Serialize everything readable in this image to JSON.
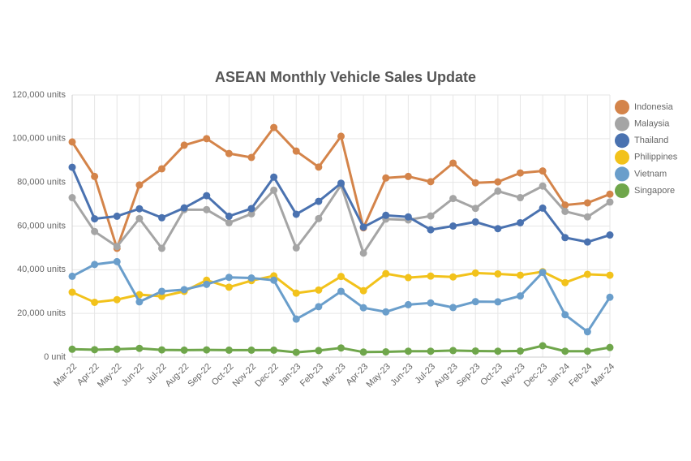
{
  "chart_data": {
    "type": "line",
    "title": "ASEAN Monthly Vehicle Sales Update",
    "categories": [
      "Mar-22",
      "Apr-22",
      "May-22",
      "Jun-22",
      "Jul-22",
      "Aug-22",
      "Sep-22",
      "Oct-22",
      "Nov-22",
      "Dec-22",
      "Jan-23",
      "Feb-23",
      "Mar-23",
      "Apr-23",
      "May-23",
      "Jun-23",
      "Jul-23",
      "Aug-23",
      "Sep-23",
      "Oct-23",
      "Nov-23",
      "Dec-23",
      "Jan-24",
      "Feb-24",
      "Mar-24"
    ],
    "series": [
      {
        "name": "Indonesia",
        "color": "#d4844a",
        "values": [
          98500,
          82700,
          49800,
          78800,
          86200,
          97000,
          100000,
          93200,
          91400,
          105100,
          94300,
          87000,
          101100,
          59200,
          82000,
          82700,
          80300,
          88800,
          79800,
          80200,
          84300,
          85200,
          69600,
          70600,
          74600
        ]
      },
      {
        "name": "Malaysia",
        "color": "#a5a5a5",
        "values": [
          73000,
          57500,
          50600,
          63400,
          49800,
          67500,
          67500,
          61500,
          65600,
          76400,
          50000,
          63400,
          78800,
          47600,
          63200,
          62800,
          64600,
          72600,
          68100,
          76000,
          73000,
          78300,
          66700,
          64200,
          71000
        ]
      },
      {
        "name": "Thailand",
        "color": "#4a72b0",
        "values": [
          86900,
          63300,
          64500,
          67900,
          63800,
          68300,
          73900,
          64500,
          68000,
          82400,
          65400,
          71300,
          79600,
          59500,
          64900,
          64200,
          58300,
          60000,
          61900,
          58800,
          61500,
          68200,
          54700,
          52700,
          55900
        ]
      },
      {
        "name": "Philippines",
        "color": "#f2c21b",
        "values": [
          29700,
          25100,
          26300,
          28600,
          27800,
          30100,
          35200,
          32000,
          35000,
          37200,
          29300,
          30700,
          36900,
          30400,
          38200,
          36400,
          37100,
          36700,
          38500,
          38100,
          37500,
          39100,
          34100,
          37900,
          37500
        ]
      },
      {
        "name": "Vietnam",
        "color": "#6a9ecb",
        "values": [
          37000,
          42400,
          43700,
          25300,
          30100,
          30900,
          33300,
          36500,
          36200,
          35200,
          17400,
          23100,
          30100,
          22600,
          20700,
          24000,
          24800,
          22700,
          25400,
          25300,
          28000,
          38800,
          19400,
          11600,
          27400
        ]
      },
      {
        "name": "Singapore",
        "color": "#6fa64b",
        "values": [
          3600,
          3400,
          3600,
          4000,
          3300,
          3200,
          3300,
          3200,
          3200,
          3200,
          2200,
          3000,
          4200,
          2300,
          2400,
          2700,
          2700,
          3000,
          2800,
          2700,
          2800,
          5200,
          2700,
          2700,
          4400
        ]
      }
    ],
    "ylim": [
      0,
      120000
    ],
    "yticks": [
      {
        "value": 0,
        "label": "0 unit"
      },
      {
        "value": 20000,
        "label": "20,000 units"
      },
      {
        "value": 40000,
        "label": "40,000 units"
      },
      {
        "value": 60000,
        "label": "60,000 units"
      },
      {
        "value": 80000,
        "label": "80,000 units"
      },
      {
        "value": 100000,
        "label": "100,000 units"
      },
      {
        "value": 120000,
        "label": "120,000 units"
      }
    ],
    "grid": true,
    "legend": "right"
  }
}
